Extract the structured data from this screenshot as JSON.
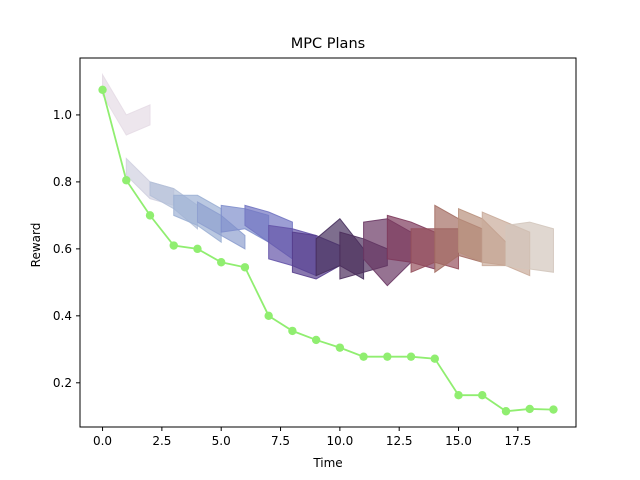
{
  "chart_data": {
    "type": "line",
    "title": "MPC Plans",
    "xlabel": "Time",
    "ylabel": "Reward",
    "xlim": [
      -0.95,
      19.95
    ],
    "ylim": [
      0.068,
      1.17
    ],
    "xticks": [
      0.0,
      2.5,
      5.0,
      7.5,
      10.0,
      12.5,
      15.0,
      17.5
    ],
    "xtick_labels": [
      "0.0",
      "2.5",
      "5.0",
      "7.5",
      "10.0",
      "12.5",
      "15.0",
      "17.5"
    ],
    "yticks": [
      0.2,
      0.4,
      0.6,
      0.8,
      1.0
    ],
    "ytick_labels": [
      "0.2",
      "0.4",
      "0.6",
      "0.8",
      "1.0"
    ],
    "grid": false,
    "legend": "none",
    "series": [
      {
        "color": "#90ee70",
        "marker": "circle",
        "x": [
          0,
          1,
          2,
          3,
          4,
          5,
          6,
          7,
          8,
          9,
          10,
          11,
          12,
          13,
          14,
          15,
          16,
          17,
          18,
          19
        ],
        "y": [
          1.075,
          0.805,
          0.7,
          0.61,
          0.6,
          0.56,
          0.545,
          0.4,
          0.355,
          0.328,
          0.305,
          0.278,
          0.278,
          0.278,
          0.272,
          0.163,
          0.163,
          0.115,
          0.122,
          0.12
        ]
      }
    ],
    "plan_bands": [
      {
        "start": 0,
        "color": "#e6dce6",
        "upper": [
          1.12,
          1.0,
          1.03
        ],
        "lower": [
          1.06,
          0.94,
          0.97
        ]
      },
      {
        "start": 1,
        "color": "#d0d0e0",
        "upper": [
          0.87,
          0.8,
          0.78
        ],
        "lower": [
          0.82,
          0.75,
          0.73
        ]
      },
      {
        "start": 2,
        "color": "#b4c0d8",
        "upper": [
          0.8,
          0.78,
          0.73
        ],
        "lower": [
          0.76,
          0.72,
          0.66
        ]
      },
      {
        "start": 3,
        "color": "#9cb0d4",
        "upper": [
          0.76,
          0.76,
          0.72
        ],
        "lower": [
          0.7,
          0.67,
          0.62
        ]
      },
      {
        "start": 4,
        "color": "#8ea0cf",
        "upper": [
          0.74,
          0.7,
          0.64
        ],
        "lower": [
          0.68,
          0.64,
          0.6
        ]
      },
      {
        "start": 5,
        "color": "#7f8ecc",
        "upper": [
          0.73,
          0.72,
          0.7
        ],
        "lower": [
          0.65,
          0.66,
          0.62
        ]
      },
      {
        "start": 6,
        "color": "#7275c2",
        "upper": [
          0.73,
          0.71,
          0.68
        ],
        "lower": [
          0.67,
          0.62,
          0.57
        ]
      },
      {
        "start": 7,
        "color": "#6454a8",
        "upper": [
          0.67,
          0.66,
          0.64
        ],
        "lower": [
          0.57,
          0.55,
          0.52
        ]
      },
      {
        "start": 8,
        "color": "#553d8c",
        "upper": [
          0.65,
          0.64,
          0.61
        ],
        "lower": [
          0.53,
          0.51,
          0.55
        ]
      },
      {
        "start": 9,
        "color": "#47305e",
        "upper": [
          0.63,
          0.69,
          0.6
        ],
        "lower": [
          0.52,
          0.55,
          0.51
        ]
      },
      {
        "start": 10,
        "color": "#4d2f5c",
        "upper": [
          0.65,
          0.63,
          0.6
        ],
        "lower": [
          0.51,
          0.53,
          0.55
        ]
      },
      {
        "start": 11,
        "color": "#6a3764",
        "upper": [
          0.68,
          0.69,
          0.65
        ],
        "lower": [
          0.57,
          0.49,
          0.56
        ]
      },
      {
        "start": 12,
        "color": "#7e3a5c",
        "upper": [
          0.7,
          0.68,
          0.65
        ],
        "lower": [
          0.57,
          0.56,
          0.54
        ]
      },
      {
        "start": 13,
        "color": "#95505c",
        "upper": [
          0.66,
          0.66,
          0.66
        ],
        "lower": [
          0.53,
          0.56,
          0.54
        ]
      },
      {
        "start": 14,
        "color": "#a46e64",
        "upper": [
          0.73,
          0.69,
          0.66
        ],
        "lower": [
          0.53,
          0.58,
          0.56
        ]
      },
      {
        "start": 15,
        "color": "#b8907c",
        "upper": [
          0.72,
          0.69,
          0.62
        ],
        "lower": [
          0.59,
          0.56,
          0.55
        ]
      },
      {
        "start": 16,
        "color": "#c9ab9a",
        "upper": [
          0.71,
          0.68,
          0.65
        ],
        "lower": [
          0.55,
          0.55,
          0.52
        ]
      },
      {
        "start": 17,
        "color": "#d3c6bc",
        "upper": [
          0.67,
          0.68,
          0.66
        ],
        "lower": [
          0.55,
          0.54,
          0.53
        ]
      }
    ]
  }
}
